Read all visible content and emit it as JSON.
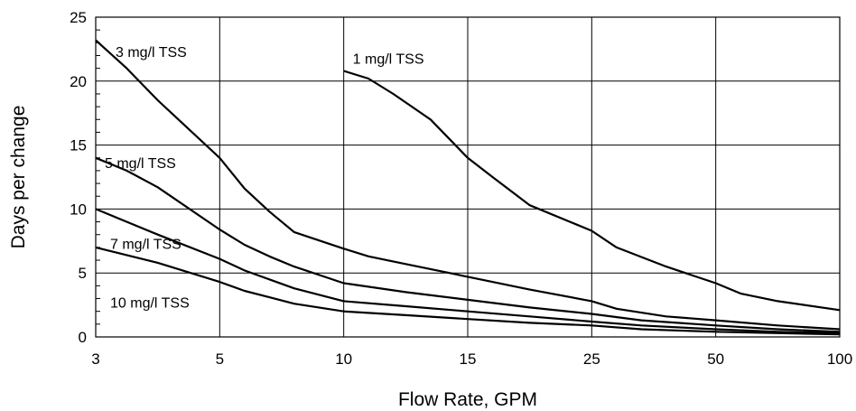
{
  "chart_data": {
    "type": "line",
    "title": "",
    "xlabel": "Flow Rate, GPM",
    "ylabel": "Days per change",
    "x_scale": "categorical-evenly-spaced",
    "categories": [
      "3",
      "5",
      "10",
      "15",
      "25",
      "50",
      "100"
    ],
    "x_values": [
      3,
      5,
      10,
      15,
      25,
      50,
      100
    ],
    "ylim": [
      0,
      25
    ],
    "yticks": [
      "0",
      "5",
      "10",
      "15",
      "20",
      "25"
    ],
    "grid": true,
    "series": [
      {
        "name": "1 mg/l TSS",
        "points": [
          [
            10,
            20.8
          ],
          [
            11,
            20.2
          ],
          [
            12,
            19.0
          ],
          [
            13.5,
            17.0
          ],
          [
            15,
            14.0
          ],
          [
            17,
            12.5
          ],
          [
            20,
            10.3
          ],
          [
            25,
            8.3
          ],
          [
            30,
            7.0
          ],
          [
            40,
            5.5
          ],
          [
            50,
            4.2
          ],
          [
            60,
            3.4
          ],
          [
            75,
            2.8
          ],
          [
            100,
            2.1
          ]
        ]
      },
      {
        "name": "3 mg/l TSS",
        "points": [
          [
            3,
            23.2
          ],
          [
            3.5,
            21.0
          ],
          [
            4,
            18.5
          ],
          [
            5,
            14.0
          ],
          [
            6,
            11.6
          ],
          [
            7,
            9.8
          ],
          [
            8,
            8.2
          ],
          [
            10,
            6.9
          ],
          [
            11,
            6.3
          ],
          [
            12.5,
            5.7
          ],
          [
            15,
            4.7
          ],
          [
            20,
            3.7
          ],
          [
            25,
            2.8
          ],
          [
            30,
            2.2
          ],
          [
            40,
            1.6
          ],
          [
            50,
            1.3
          ],
          [
            75,
            0.9
          ],
          [
            100,
            0.6
          ]
        ]
      },
      {
        "name": "5 mg/l TSS",
        "points": [
          [
            3,
            14.0
          ],
          [
            3.5,
            13.0
          ],
          [
            4,
            11.7
          ],
          [
            5,
            8.4
          ],
          [
            6,
            7.2
          ],
          [
            7,
            6.3
          ],
          [
            8,
            5.5
          ],
          [
            10,
            4.2
          ],
          [
            12.5,
            3.5
          ],
          [
            15,
            2.9
          ],
          [
            20,
            2.3
          ],
          [
            25,
            1.8
          ],
          [
            35,
            1.3
          ],
          [
            50,
            0.9
          ],
          [
            75,
            0.6
          ],
          [
            100,
            0.4
          ]
        ]
      },
      {
        "name": "7 mg/l TSS",
        "points": [
          [
            3,
            10.0
          ],
          [
            4,
            8.0
          ],
          [
            5,
            6.1
          ],
          [
            6,
            5.2
          ],
          [
            7,
            4.5
          ],
          [
            8,
            3.8
          ],
          [
            10,
            2.8
          ],
          [
            12.5,
            2.4
          ],
          [
            15,
            2.0
          ],
          [
            20,
            1.6
          ],
          [
            25,
            1.2
          ],
          [
            35,
            0.9
          ],
          [
            50,
            0.6
          ],
          [
            75,
            0.4
          ],
          [
            100,
            0.3
          ]
        ]
      },
      {
        "name": "10 mg/l TSS",
        "points": [
          [
            3,
            7.0
          ],
          [
            4,
            5.8
          ],
          [
            5,
            4.3
          ],
          [
            6,
            3.6
          ],
          [
            7,
            3.1
          ],
          [
            8,
            2.6
          ],
          [
            10,
            2.0
          ],
          [
            12.5,
            1.7
          ],
          [
            15,
            1.4
          ],
          [
            20,
            1.1
          ],
          [
            25,
            0.9
          ],
          [
            35,
            0.6
          ],
          [
            50,
            0.4
          ],
          [
            75,
            0.3
          ],
          [
            100,
            0.2
          ]
        ]
      }
    ]
  }
}
